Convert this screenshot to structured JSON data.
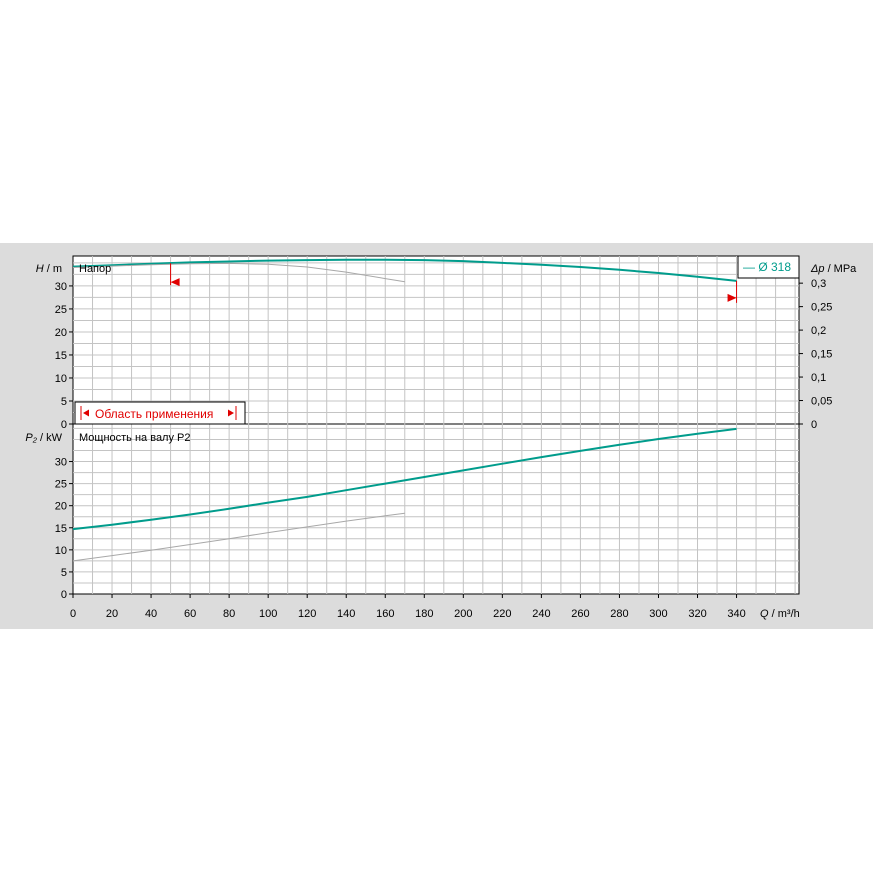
{
  "chart_data": [
    {
      "type": "line",
      "title": "Напор",
      "ylabel_italic": "H",
      "ylabel_unit": "/ m",
      "y2label_italic": "Δp",
      "y2label_unit": "/ MPa",
      "xlim": [
        0,
        372
      ],
      "ylim": [
        0,
        36.5
      ],
      "yticks": [
        0,
        5,
        10,
        15,
        20,
        25,
        30
      ],
      "y2ticks": [
        "0",
        "0,05",
        "0,1",
        "0,15",
        "0,2",
        "0,25",
        "0,3"
      ],
      "y2tick_values": [
        0,
        5.1,
        10.2,
        15.3,
        20.4,
        25.5,
        30.6
      ],
      "grid": true,
      "legend": {
        "label": "— Ø 318",
        "position": "top-right",
        "color": "#009c8c"
      },
      "series": [
        {
          "name": "Ø 318",
          "color": "#009c8c",
          "x": [
            0,
            20,
            40,
            60,
            80,
            100,
            120,
            140,
            160,
            180,
            200,
            220,
            240,
            260,
            280,
            300,
            320,
            340
          ],
          "y": [
            34.2,
            34.5,
            34.8,
            35.1,
            35.3,
            35.5,
            35.6,
            35.7,
            35.7,
            35.6,
            35.4,
            35.0,
            34.6,
            34.1,
            33.5,
            32.8,
            32.0,
            31.1
          ]
        },
        {
          "color": "#a8a8a8",
          "x": [
            0,
            20,
            40,
            60,
            80,
            100,
            120,
            140,
            160,
            170
          ],
          "y": [
            34.0,
            34.3,
            34.6,
            34.8,
            34.9,
            34.7,
            34.1,
            33.0,
            31.6,
            30.9
          ]
        }
      ],
      "application_range": {
        "label": "Область применения",
        "q_min": 50,
        "q_max": 340
      }
    },
    {
      "type": "line",
      "title": "Мощность на валу P2",
      "ylabel_italic": "P₂",
      "ylabel_unit": "/ kW",
      "xlabel_italic": "Q",
      "xlabel_unit": "/ m³/h",
      "xlim": [
        0,
        372
      ],
      "ylim": [
        0,
        38.5
      ],
      "yticks": [
        0,
        5,
        10,
        15,
        20,
        25,
        30
      ],
      "xticks": [
        0,
        20,
        40,
        60,
        80,
        100,
        120,
        140,
        160,
        180,
        200,
        220,
        240,
        260,
        280,
        300,
        320,
        340
      ],
      "grid": true,
      "series": [
        {
          "name": "Ø 318",
          "color": "#009c8c",
          "x": [
            0,
            20,
            40,
            60,
            80,
            100,
            120,
            140,
            160,
            180,
            200,
            220,
            240,
            260,
            280,
            300,
            320,
            340
          ],
          "y": [
            14.7,
            15.7,
            16.8,
            18.0,
            19.3,
            20.7,
            22.0,
            23.5,
            25.0,
            26.5,
            28.0,
            29.5,
            31.0,
            32.4,
            33.8,
            35.1,
            36.3,
            37.4
          ]
        },
        {
          "color": "#a8a8a8",
          "x": [
            0,
            20,
            40,
            60,
            80,
            100,
            120,
            140,
            160,
            170
          ],
          "y": [
            7.5,
            8.7,
            9.9,
            11.2,
            12.5,
            13.9,
            15.2,
            16.5,
            17.7,
            18.3
          ]
        }
      ]
    }
  ]
}
